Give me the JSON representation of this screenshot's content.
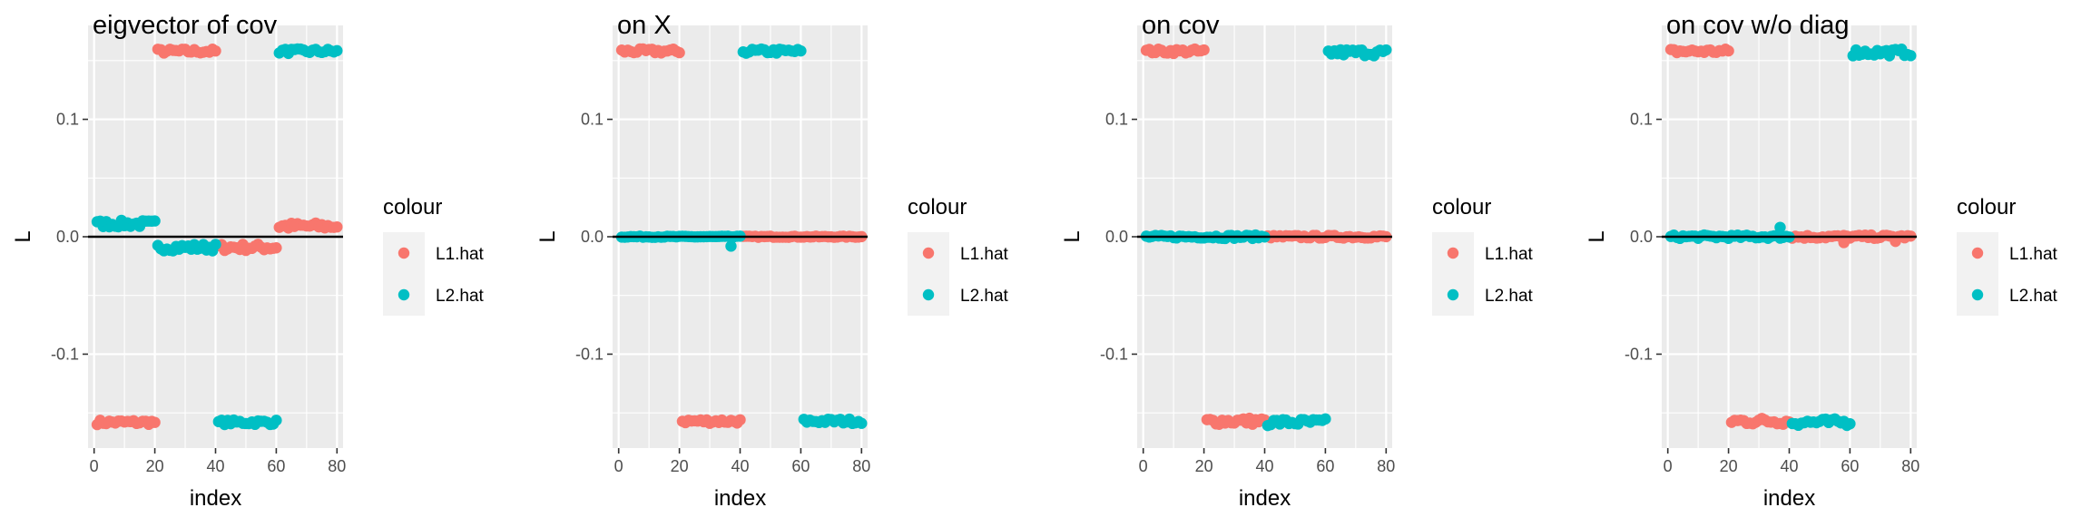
{
  "legend": {
    "title": "colour",
    "items": [
      {
        "label": "L1.hat",
        "color": "#F8766D"
      },
      {
        "label": "L2.hat",
        "color": "#00BFC4"
      }
    ]
  },
  "chart_data": [
    {
      "type": "scatter",
      "title": "eigvector of cov",
      "xlabel": "index",
      "ylabel": "L",
      "xlim": [
        -2,
        82
      ],
      "ylim": [
        -0.18,
        0.18
      ],
      "xticks": [
        0,
        20,
        40,
        60,
        80
      ],
      "xtick_labels": [
        "0",
        "20",
        "40",
        "60",
        "80"
      ],
      "yticks": [
        -0.1,
        0.0,
        0.1
      ],
      "ytick_labels": [
        "-0.1",
        "0.0",
        "0.1"
      ],
      "hline": 0,
      "grid": true,
      "legend_position": "right",
      "series": [
        {
          "name": "L1.hat",
          "color": "#F8766D",
          "segments": [
            {
              "x": [
                1,
                20
              ],
              "y": -0.158,
              "jitter": 0.002
            },
            {
              "x": [
                21,
                40
              ],
              "y": 0.158,
              "jitter": 0.002
            },
            {
              "x": [
                41,
                60
              ],
              "y": -0.009,
              "jitter": 0.003
            },
            {
              "x": [
                61,
                80
              ],
              "y": 0.009,
              "jitter": 0.003
            }
          ]
        },
        {
          "name": "L2.hat",
          "color": "#00BFC4",
          "segments": [
            {
              "x": [
                1,
                20
              ],
              "y": 0.011,
              "jitter": 0.003
            },
            {
              "x": [
                21,
                40
              ],
              "y": -0.009,
              "jitter": 0.003
            },
            {
              "x": [
                41,
                60
              ],
              "y": -0.158,
              "jitter": 0.002
            },
            {
              "x": [
                61,
                80
              ],
              "y": 0.158,
              "jitter": 0.002
            }
          ]
        }
      ]
    },
    {
      "type": "scatter",
      "title": "on X",
      "xlabel": "index",
      "ylabel": "L",
      "xlim": [
        -2,
        82
      ],
      "ylim": [
        -0.18,
        0.18
      ],
      "xticks": [
        0,
        20,
        40,
        60,
        80
      ],
      "xtick_labels": [
        "0",
        "20",
        "40",
        "60",
        "80"
      ],
      "yticks": [
        -0.1,
        0.0,
        0.1
      ],
      "ytick_labels": [
        "-0.1",
        "0.0",
        "0.1"
      ],
      "hline": 0,
      "grid": true,
      "legend_position": "right",
      "series": [
        {
          "name": "L1.hat",
          "color": "#F8766D",
          "segments": [
            {
              "x": [
                1,
                20
              ],
              "y": 0.158,
              "jitter": 0.002
            },
            {
              "x": [
                21,
                40
              ],
              "y": -0.157,
              "jitter": 0.002
            },
            {
              "x": [
                41,
                60
              ],
              "y": 0.0,
              "jitter": 0.0005
            },
            {
              "x": [
                61,
                80
              ],
              "y": 0.0,
              "jitter": 0.0005
            }
          ]
        },
        {
          "name": "L2.hat",
          "color": "#00BFC4",
          "segments": [
            {
              "x": [
                1,
                20
              ],
              "y": 0.0,
              "jitter": 0.0005
            },
            {
              "x": [
                21,
                40
              ],
              "y": 0.0,
              "jitter": 0.0005
            },
            {
              "x": [
                41,
                60
              ],
              "y": 0.158,
              "jitter": 0.002
            },
            {
              "x": [
                61,
                80
              ],
              "y": -0.157,
              "jitter": 0.002
            }
          ]
        }
      ],
      "extra_points": [
        {
          "series": "L2.hat",
          "x": 37,
          "y": -0.008
        }
      ]
    },
    {
      "type": "scatter",
      "title": "on cov",
      "xlabel": "index",
      "ylabel": "L",
      "xlim": [
        -2,
        82
      ],
      "ylim": [
        -0.18,
        0.18
      ],
      "xticks": [
        0,
        20,
        40,
        60,
        80
      ],
      "xtick_labels": [
        "0",
        "20",
        "40",
        "60",
        "80"
      ],
      "yticks": [
        -0.1,
        0.0,
        0.1
      ],
      "ytick_labels": [
        "-0.1",
        "0.0",
        "0.1"
      ],
      "hline": 0,
      "grid": true,
      "legend_position": "right",
      "series": [
        {
          "name": "L1.hat",
          "color": "#F8766D",
          "segments": [
            {
              "x": [
                1,
                20
              ],
              "y": 0.158,
              "jitter": 0.002
            },
            {
              "x": [
                21,
                40
              ],
              "y": -0.157,
              "jitter": 0.003
            },
            {
              "x": [
                41,
                60
              ],
              "y": 0.0,
              "jitter": 0.0012
            },
            {
              "x": [
                61,
                80
              ],
              "y": 0.0,
              "jitter": 0.0012
            }
          ]
        },
        {
          "name": "L2.hat",
          "color": "#00BFC4",
          "segments": [
            {
              "x": [
                1,
                20
              ],
              "y": 0.0,
              "jitter": 0.0012
            },
            {
              "x": [
                21,
                40
              ],
              "y": 0.0,
              "jitter": 0.0015
            },
            {
              "x": [
                41,
                60
              ],
              "y": -0.158,
              "jitter": 0.003
            },
            {
              "x": [
                61,
                80
              ],
              "y": 0.157,
              "jitter": 0.003
            }
          ]
        }
      ]
    },
    {
      "type": "scatter",
      "title": "on cov w/o diag",
      "xlabel": "index",
      "ylabel": "L",
      "xlim": [
        -2,
        82
      ],
      "ylim": [
        -0.18,
        0.18
      ],
      "xticks": [
        0,
        20,
        40,
        60,
        80
      ],
      "xtick_labels": [
        "0",
        "20",
        "40",
        "60",
        "80"
      ],
      "yticks": [
        -0.1,
        0.0,
        0.1
      ],
      "ytick_labels": [
        "-0.1",
        "0.0",
        "0.1"
      ],
      "hline": 0,
      "grid": true,
      "legend_position": "right",
      "series": [
        {
          "name": "L1.hat",
          "color": "#F8766D",
          "segments": [
            {
              "x": [
                1,
                20
              ],
              "y": 0.158,
              "jitter": 0.002
            },
            {
              "x": [
                21,
                40
              ],
              "y": -0.157,
              "jitter": 0.003
            },
            {
              "x": [
                41,
                60
              ],
              "y": 0.0,
              "jitter": 0.0015
            },
            {
              "x": [
                61,
                80
              ],
              "y": 0.0,
              "jitter": 0.0015
            }
          ]
        },
        {
          "name": "L2.hat",
          "color": "#00BFC4",
          "segments": [
            {
              "x": [
                1,
                20
              ],
              "y": 0.0,
              "jitter": 0.0015
            },
            {
              "x": [
                21,
                40
              ],
              "y": 0.0,
              "jitter": 0.0015
            },
            {
              "x": [
                41,
                60
              ],
              "y": -0.158,
              "jitter": 0.003
            },
            {
              "x": [
                61,
                80
              ],
              "y": 0.157,
              "jitter": 0.003
            }
          ]
        }
      ],
      "extra_points": [
        {
          "series": "L2.hat",
          "x": 37,
          "y": 0.008
        },
        {
          "series": "L1.hat",
          "x": 58,
          "y": -0.005
        },
        {
          "series": "L1.hat",
          "x": 75,
          "y": -0.004
        }
      ]
    }
  ]
}
